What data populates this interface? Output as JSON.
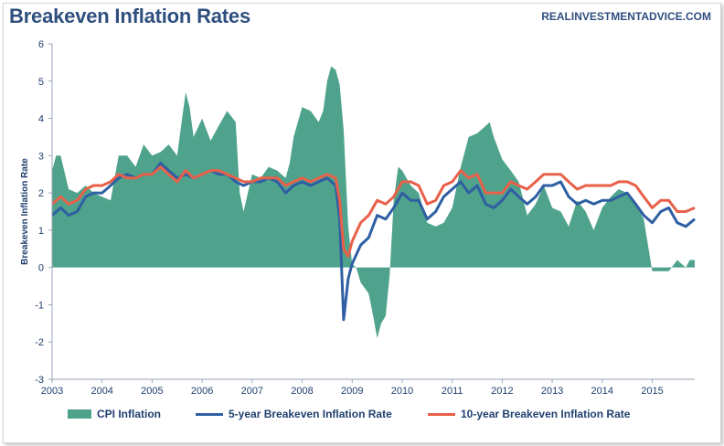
{
  "header": {
    "title": "Breakeven Inflation Rates",
    "source": "REALINVESTMENTADVICE.COM"
  },
  "colors": {
    "cpi": "#4fa38c",
    "five_year": "#2f5fa3",
    "ten_year": "#e8604a",
    "axis_text": "#1f3f6f"
  },
  "chart_data": {
    "type": "line",
    "title": "Breakeven Inflation Rates",
    "ylabel": "Breakeven Inflation Rate",
    "xlabel": "",
    "xlim": [
      2003.0,
      2015.85
    ],
    "ylim": [
      -3,
      6
    ],
    "y_ticks": [
      "6",
      "5",
      "4",
      "3",
      "2",
      "1",
      "0",
      "-1",
      "-2",
      "-3"
    ],
    "x_ticks": [
      "2003",
      "2004",
      "2005",
      "2006",
      "2007",
      "2008",
      "2009",
      "2010",
      "2011",
      "2012",
      "2013",
      "2014",
      "2015"
    ],
    "legend_position": "bottom",
    "grid": false,
    "series": [
      {
        "name": "CPI Inflation",
        "style": "area",
        "points": [
          [
            2003.0,
            2.6
          ],
          [
            2003.08,
            3.0
          ],
          [
            2003.17,
            3.0
          ],
          [
            2003.33,
            2.1
          ],
          [
            2003.5,
            2.0
          ],
          [
            2003.67,
            2.2
          ],
          [
            2003.83,
            2.0
          ],
          [
            2004.0,
            1.9
          ],
          [
            2004.17,
            1.8
          ],
          [
            2004.33,
            3.0
          ],
          [
            2004.5,
            3.0
          ],
          [
            2004.67,
            2.7
          ],
          [
            2004.83,
            3.3
          ],
          [
            2005.0,
            3.0
          ],
          [
            2005.17,
            3.1
          ],
          [
            2005.33,
            3.3
          ],
          [
            2005.5,
            3.0
          ],
          [
            2005.58,
            3.8
          ],
          [
            2005.67,
            4.7
          ],
          [
            2005.75,
            4.3
          ],
          [
            2005.83,
            3.5
          ],
          [
            2006.0,
            4.0
          ],
          [
            2006.17,
            3.4
          ],
          [
            2006.33,
            3.8
          ],
          [
            2006.5,
            4.2
          ],
          [
            2006.67,
            3.9
          ],
          [
            2006.75,
            2.0
          ],
          [
            2006.83,
            1.5
          ],
          [
            2007.0,
            2.5
          ],
          [
            2007.17,
            2.4
          ],
          [
            2007.33,
            2.7
          ],
          [
            2007.5,
            2.6
          ],
          [
            2007.67,
            2.4
          ],
          [
            2007.75,
            2.8
          ],
          [
            2007.83,
            3.5
          ],
          [
            2008.0,
            4.3
          ],
          [
            2008.17,
            4.2
          ],
          [
            2008.33,
            3.9
          ],
          [
            2008.42,
            4.2
          ],
          [
            2008.5,
            5.0
          ],
          [
            2008.58,
            5.4
          ],
          [
            2008.67,
            5.3
          ],
          [
            2008.75,
            4.9
          ],
          [
            2008.83,
            3.7
          ],
          [
            2008.92,
            1.1
          ],
          [
            2009.0,
            0.1
          ],
          [
            2009.08,
            0.0
          ],
          [
            2009.17,
            -0.4
          ],
          [
            2009.33,
            -0.7
          ],
          [
            2009.42,
            -1.3
          ],
          [
            2009.5,
            -1.9
          ],
          [
            2009.58,
            -1.5
          ],
          [
            2009.67,
            -1.3
          ],
          [
            2009.75,
            -0.2
          ],
          [
            2009.83,
            1.8
          ],
          [
            2009.92,
            2.7
          ],
          [
            2010.0,
            2.6
          ],
          [
            2010.17,
            2.2
          ],
          [
            2010.33,
            2.0
          ],
          [
            2010.5,
            1.2
          ],
          [
            2010.67,
            1.1
          ],
          [
            2010.83,
            1.2
          ],
          [
            2011.0,
            1.6
          ],
          [
            2011.17,
            2.7
          ],
          [
            2011.33,
            3.5
          ],
          [
            2011.5,
            3.6
          ],
          [
            2011.67,
            3.8
          ],
          [
            2011.75,
            3.9
          ],
          [
            2011.83,
            3.5
          ],
          [
            2012.0,
            2.9
          ],
          [
            2012.17,
            2.6
          ],
          [
            2012.33,
            2.3
          ],
          [
            2012.5,
            1.4
          ],
          [
            2012.67,
            1.7
          ],
          [
            2012.83,
            2.2
          ],
          [
            2013.0,
            1.6
          ],
          [
            2013.17,
            1.5
          ],
          [
            2013.33,
            1.1
          ],
          [
            2013.5,
            1.8
          ],
          [
            2013.67,
            1.5
          ],
          [
            2013.83,
            1.0
          ],
          [
            2014.0,
            1.6
          ],
          [
            2014.17,
            1.9
          ],
          [
            2014.33,
            2.1
          ],
          [
            2014.5,
            2.0
          ],
          [
            2014.67,
            1.7
          ],
          [
            2014.83,
            1.3
          ],
          [
            2015.0,
            -0.1
          ],
          [
            2015.17,
            -0.1
          ],
          [
            2015.33,
            -0.1
          ],
          [
            2015.5,
            0.2
          ],
          [
            2015.67,
            0.0
          ],
          [
            2015.75,
            0.2
          ],
          [
            2015.85,
            0.2
          ]
        ]
      },
      {
        "name": "5-year Breakeven Inflation Rate",
        "style": "line",
        "points": [
          [
            2003.0,
            1.4
          ],
          [
            2003.17,
            1.6
          ],
          [
            2003.33,
            1.4
          ],
          [
            2003.5,
            1.5
          ],
          [
            2003.67,
            1.9
          ],
          [
            2003.83,
            2.0
          ],
          [
            2004.0,
            2.0
          ],
          [
            2004.17,
            2.2
          ],
          [
            2004.33,
            2.4
          ],
          [
            2004.5,
            2.5
          ],
          [
            2004.67,
            2.4
          ],
          [
            2004.83,
            2.5
          ],
          [
            2005.0,
            2.5
          ],
          [
            2005.17,
            2.8
          ],
          [
            2005.33,
            2.6
          ],
          [
            2005.5,
            2.4
          ],
          [
            2005.67,
            2.5
          ],
          [
            2005.83,
            2.4
          ],
          [
            2006.0,
            2.5
          ],
          [
            2006.17,
            2.6
          ],
          [
            2006.33,
            2.5
          ],
          [
            2006.5,
            2.5
          ],
          [
            2006.67,
            2.3
          ],
          [
            2006.83,
            2.2
          ],
          [
            2007.0,
            2.3
          ],
          [
            2007.17,
            2.3
          ],
          [
            2007.33,
            2.4
          ],
          [
            2007.5,
            2.3
          ],
          [
            2007.67,
            2.0
          ],
          [
            2007.83,
            2.2
          ],
          [
            2008.0,
            2.3
          ],
          [
            2008.17,
            2.2
          ],
          [
            2008.33,
            2.3
          ],
          [
            2008.5,
            2.4
          ],
          [
            2008.67,
            2.2
          ],
          [
            2008.75,
            1.3
          ],
          [
            2008.83,
            -1.4
          ],
          [
            2008.92,
            -0.3
          ],
          [
            2009.0,
            0.1
          ],
          [
            2009.17,
            0.6
          ],
          [
            2009.33,
            0.8
          ],
          [
            2009.5,
            1.4
          ],
          [
            2009.67,
            1.3
          ],
          [
            2009.83,
            1.6
          ],
          [
            2010.0,
            2.0
          ],
          [
            2010.17,
            1.8
          ],
          [
            2010.33,
            1.8
          ],
          [
            2010.5,
            1.3
          ],
          [
            2010.67,
            1.5
          ],
          [
            2010.83,
            1.9
          ],
          [
            2011.0,
            2.1
          ],
          [
            2011.17,
            2.3
          ],
          [
            2011.33,
            2.0
          ],
          [
            2011.5,
            2.2
          ],
          [
            2011.67,
            1.7
          ],
          [
            2011.83,
            1.6
          ],
          [
            2012.0,
            1.8
          ],
          [
            2012.17,
            2.1
          ],
          [
            2012.33,
            1.9
          ],
          [
            2012.5,
            1.7
          ],
          [
            2012.67,
            1.9
          ],
          [
            2012.83,
            2.2
          ],
          [
            2013.0,
            2.2
          ],
          [
            2013.17,
            2.3
          ],
          [
            2013.33,
            1.9
          ],
          [
            2013.5,
            1.7
          ],
          [
            2013.67,
            1.8
          ],
          [
            2013.83,
            1.7
          ],
          [
            2014.0,
            1.8
          ],
          [
            2014.17,
            1.8
          ],
          [
            2014.33,
            1.9
          ],
          [
            2014.5,
            2.0
          ],
          [
            2014.67,
            1.7
          ],
          [
            2014.83,
            1.4
          ],
          [
            2015.0,
            1.2
          ],
          [
            2015.17,
            1.5
          ],
          [
            2015.33,
            1.6
          ],
          [
            2015.5,
            1.2
          ],
          [
            2015.67,
            1.1
          ],
          [
            2015.85,
            1.3
          ]
        ]
      },
      {
        "name": "10-year Breakeven Inflation Rate",
        "style": "line",
        "points": [
          [
            2003.0,
            1.7
          ],
          [
            2003.17,
            1.9
          ],
          [
            2003.33,
            1.7
          ],
          [
            2003.5,
            1.8
          ],
          [
            2003.67,
            2.1
          ],
          [
            2003.83,
            2.2
          ],
          [
            2004.0,
            2.2
          ],
          [
            2004.17,
            2.3
          ],
          [
            2004.33,
            2.5
          ],
          [
            2004.5,
            2.4
          ],
          [
            2004.67,
            2.4
          ],
          [
            2004.83,
            2.5
          ],
          [
            2005.0,
            2.5
          ],
          [
            2005.17,
            2.7
          ],
          [
            2005.33,
            2.5
          ],
          [
            2005.5,
            2.3
          ],
          [
            2005.67,
            2.6
          ],
          [
            2005.83,
            2.4
          ],
          [
            2006.0,
            2.5
          ],
          [
            2006.17,
            2.6
          ],
          [
            2006.33,
            2.6
          ],
          [
            2006.5,
            2.5
          ],
          [
            2006.67,
            2.4
          ],
          [
            2006.83,
            2.3
          ],
          [
            2007.0,
            2.3
          ],
          [
            2007.17,
            2.4
          ],
          [
            2007.33,
            2.4
          ],
          [
            2007.5,
            2.4
          ],
          [
            2007.67,
            2.2
          ],
          [
            2007.83,
            2.3
          ],
          [
            2008.0,
            2.4
          ],
          [
            2008.17,
            2.3
          ],
          [
            2008.33,
            2.4
          ],
          [
            2008.5,
            2.5
          ],
          [
            2008.67,
            2.4
          ],
          [
            2008.75,
            1.8
          ],
          [
            2008.83,
            0.5
          ],
          [
            2008.92,
            0.3
          ],
          [
            2009.0,
            0.7
          ],
          [
            2009.17,
            1.2
          ],
          [
            2009.33,
            1.4
          ],
          [
            2009.5,
            1.8
          ],
          [
            2009.67,
            1.7
          ],
          [
            2009.83,
            1.9
          ],
          [
            2010.0,
            2.3
          ],
          [
            2010.17,
            2.3
          ],
          [
            2010.33,
            2.2
          ],
          [
            2010.5,
            1.7
          ],
          [
            2010.67,
            1.8
          ],
          [
            2010.83,
            2.2
          ],
          [
            2011.0,
            2.3
          ],
          [
            2011.17,
            2.6
          ],
          [
            2011.33,
            2.4
          ],
          [
            2011.5,
            2.5
          ],
          [
            2011.67,
            2.0
          ],
          [
            2011.83,
            2.0
          ],
          [
            2012.0,
            2.0
          ],
          [
            2012.17,
            2.3
          ],
          [
            2012.33,
            2.2
          ],
          [
            2012.5,
            2.1
          ],
          [
            2012.67,
            2.3
          ],
          [
            2012.83,
            2.5
          ],
          [
            2013.0,
            2.5
          ],
          [
            2013.17,
            2.5
          ],
          [
            2013.33,
            2.3
          ],
          [
            2013.5,
            2.1
          ],
          [
            2013.67,
            2.2
          ],
          [
            2013.83,
            2.2
          ],
          [
            2014.0,
            2.2
          ],
          [
            2014.17,
            2.2
          ],
          [
            2014.33,
            2.3
          ],
          [
            2014.5,
            2.3
          ],
          [
            2014.67,
            2.2
          ],
          [
            2014.83,
            1.9
          ],
          [
            2015.0,
            1.6
          ],
          [
            2015.17,
            1.8
          ],
          [
            2015.33,
            1.8
          ],
          [
            2015.5,
            1.5
          ],
          [
            2015.67,
            1.5
          ],
          [
            2015.85,
            1.6
          ]
        ]
      }
    ]
  }
}
